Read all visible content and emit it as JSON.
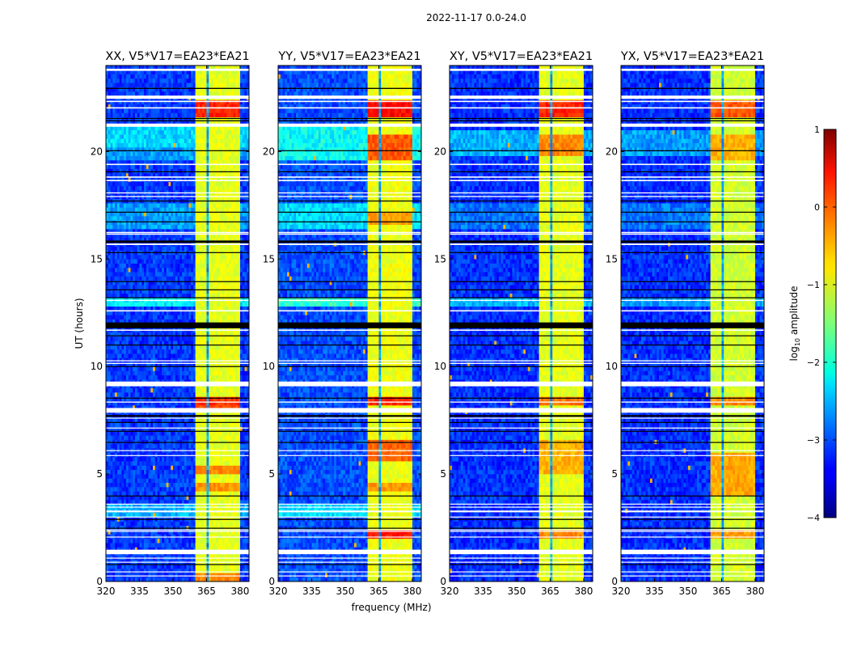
{
  "chart_data": {
    "type": "heatmap",
    "title": "2022-11-17 0.0-24.0",
    "xlabel": "frequency (MHz)",
    "ylabel": "UT (hours)",
    "xlim": [
      320,
      384
    ],
    "ylim": [
      0,
      24
    ],
    "xticks": [
      "320",
      "335",
      "350",
      "365",
      "380"
    ],
    "xtick_values": [
      320,
      335,
      350,
      365,
      380
    ],
    "yticks": [
      "0",
      "5",
      "10",
      "15",
      "20"
    ],
    "ytick_values": [
      0,
      5,
      10,
      15,
      20
    ],
    "colorbar": {
      "label": "log10 amplitude",
      "label_main": "log",
      "label_sub": "10",
      "label_rest": " amplitude",
      "range": [
        -4,
        1
      ],
      "ticks": [
        "1",
        "0",
        "−1",
        "−2",
        "−3",
        "−4"
      ],
      "tick_values": [
        1,
        0,
        -1,
        -2,
        -3,
        -4
      ],
      "colormap": "jet"
    },
    "rfi_subbands_mhz": [
      [
        360.5,
        365.3
      ],
      [
        365.8,
        370.0
      ],
      [
        370.5,
        374.7
      ],
      [
        375.2,
        379.6
      ]
    ],
    "flagged_hours": [
      [
        23.75,
        23.85
      ],
      [
        22.45,
        22.6
      ],
      [
        22.3,
        22.36
      ],
      [
        22.0,
        22.06
      ],
      [
        21.15,
        21.3
      ],
      [
        19.37,
        19.43
      ],
      [
        18.78,
        18.84
      ],
      [
        18.62,
        18.68
      ],
      [
        18.05,
        18.1
      ],
      [
        17.88,
        17.93
      ],
      [
        16.2,
        16.26
      ],
      [
        16.13,
        16.18
      ],
      [
        15.65,
        15.72
      ],
      [
        13.05,
        13.1
      ],
      [
        12.56,
        12.62
      ],
      [
        11.66,
        11.72
      ],
      [
        10.24,
        10.29
      ],
      [
        10.12,
        10.17
      ],
      [
        9.08,
        9.3
      ],
      [
        8.32,
        8.37
      ],
      [
        7.85,
        8.07
      ],
      [
        7.58,
        7.62
      ],
      [
        7.12,
        7.16
      ],
      [
        6.07,
        6.11
      ],
      [
        5.84,
        5.88
      ],
      [
        3.58,
        3.62
      ],
      [
        3.44,
        3.48
      ],
      [
        3.22,
        3.3
      ],
      [
        2.98,
        3.02
      ],
      [
        2.38,
        2.42
      ],
      [
        2.31,
        2.35
      ],
      [
        2.05,
        2.09
      ],
      [
        1.27,
        1.48
      ],
      [
        1.07,
        1.11
      ],
      [
        0.88,
        0.92
      ],
      [
        0.43,
        0.47
      ],
      [
        0.24,
        0.28
      ]
    ],
    "zero_hours": [
      [
        22.91,
        22.96
      ],
      [
        21.52,
        21.56
      ],
      [
        21.41,
        21.45
      ],
      [
        20.02,
        20.06
      ],
      [
        19.04,
        19.08
      ],
      [
        17.68,
        17.72
      ],
      [
        17.16,
        17.2
      ],
      [
        16.71,
        16.75
      ],
      [
        15.75,
        15.86
      ],
      [
        15.28,
        15.32
      ],
      [
        13.93,
        13.97
      ],
      [
        13.55,
        13.59
      ],
      [
        13.18,
        13.22
      ],
      [
        11.78,
        12.05
      ],
      [
        11.41,
        11.45
      ],
      [
        10.98,
        11.02
      ],
      [
        9.98,
        10.02
      ],
      [
        8.51,
        8.55
      ],
      [
        7.66,
        7.74
      ],
      [
        7.38,
        7.42
      ],
      [
        6.97,
        7.01
      ],
      [
        6.45,
        6.49
      ],
      [
        3.96,
        4.0
      ],
      [
        2.87,
        2.91
      ],
      [
        2.46,
        2.5
      ],
      [
        0.77,
        0.81
      ]
    ],
    "panels": [
      {
        "title": "XX, V5*V17=EA23*EA21",
        "background_level": -3.1,
        "rfi_level": -1.0,
        "enhanced": [
          [
            20.1,
            21.0,
            -2.3
          ],
          [
            16.3,
            17.5,
            -2.6
          ],
          [
            12.6,
            13.1,
            -2.2
          ],
          [
            3.0,
            3.6,
            -2.5
          ],
          [
            19.4,
            20.0,
            -2.6
          ]
        ],
        "hotspots": [
          [
            21.55,
            22.25,
            0.2
          ],
          [
            8.15,
            8.5,
            0.15
          ],
          [
            7.9,
            8.05,
            0.0
          ],
          [
            4.95,
            5.3,
            -0.3
          ],
          [
            4.1,
            4.6,
            -0.35
          ],
          [
            0.0,
            0.3,
            -0.3
          ]
        ]
      },
      {
        "title": "YY, V5*V17=EA23*EA21",
        "background_level": -3.0,
        "rfi_level": -0.95,
        "enhanced": [
          [
            19.4,
            21.0,
            -2.1
          ],
          [
            16.3,
            17.5,
            -2.3
          ],
          [
            12.6,
            13.1,
            -1.9
          ],
          [
            3.0,
            3.6,
            -2.3
          ]
        ],
        "hotspots": [
          [
            21.5,
            22.25,
            0.35
          ],
          [
            19.5,
            20.7,
            -0.05
          ],
          [
            16.5,
            17.0,
            -0.4
          ],
          [
            8.15,
            8.5,
            0.2
          ],
          [
            5.5,
            6.5,
            -0.1
          ],
          [
            4.2,
            4.5,
            -0.4
          ],
          [
            1.8,
            2.2,
            0.3
          ]
        ]
      },
      {
        "title": "XY, V5*V17=EA23*EA21",
        "background_level": -3.15,
        "rfi_level": -1.0,
        "enhanced": [
          [
            19.6,
            20.9,
            -2.5
          ],
          [
            16.3,
            17.5,
            -2.8
          ],
          [
            12.6,
            13.1,
            -2.5
          ]
        ],
        "hotspots": [
          [
            21.55,
            22.2,
            0.2
          ],
          [
            19.7,
            20.6,
            -0.3
          ],
          [
            8.2,
            8.5,
            -0.2
          ],
          [
            5.0,
            6.5,
            -0.5
          ],
          [
            1.8,
            2.2,
            -0.3
          ]
        ]
      },
      {
        "title": "YX, V5*V17=EA23*EA21",
        "background_level": -3.15,
        "rfi_level": -1.1,
        "enhanced": [
          [
            19.6,
            20.9,
            -2.6
          ],
          [
            16.3,
            17.5,
            -2.8
          ],
          [
            12.6,
            13.1,
            -2.6
          ]
        ],
        "hotspots": [
          [
            21.55,
            22.2,
            -0.05
          ],
          [
            19.5,
            20.6,
            -0.5
          ],
          [
            8.2,
            8.5,
            -0.3
          ],
          [
            4.0,
            6.0,
            -0.45
          ],
          [
            1.8,
            2.2,
            -0.4
          ]
        ]
      }
    ]
  }
}
